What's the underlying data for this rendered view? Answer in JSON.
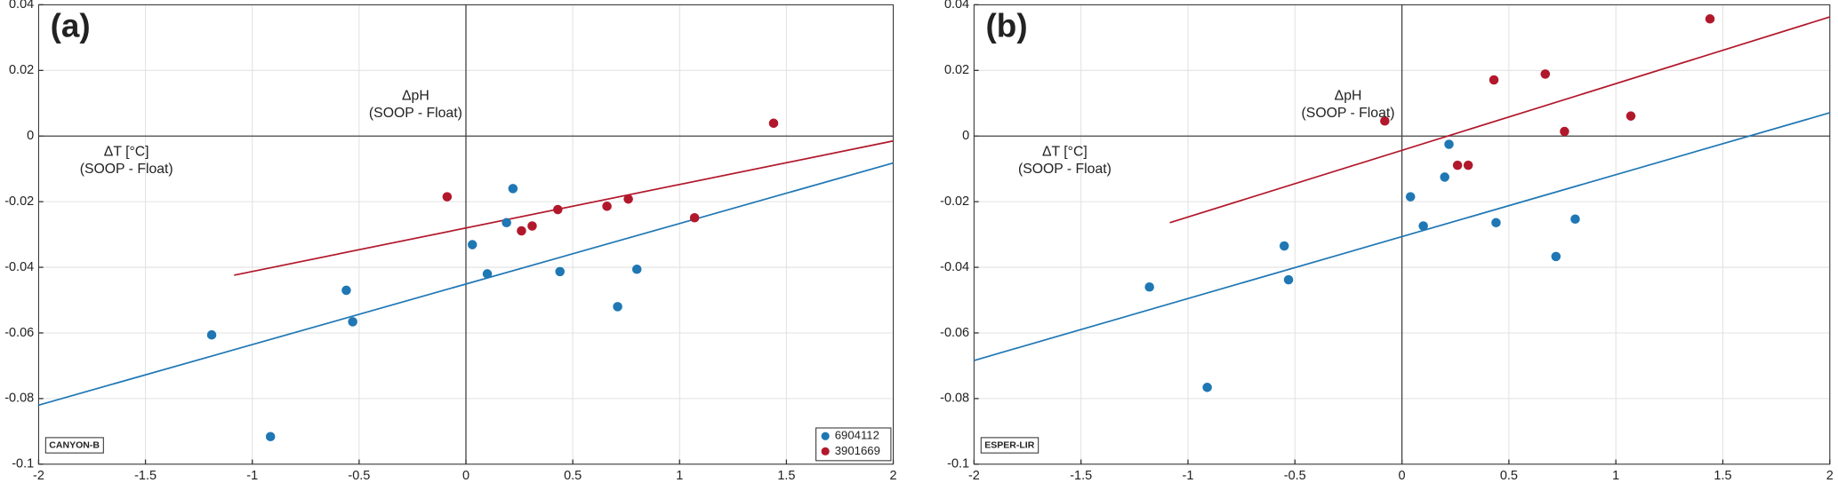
{
  "chart_data": [
    {
      "type": "scatter",
      "panel_label": "(a)",
      "method": "CANYON-B",
      "annotations": [
        "ΔpH",
        "(SOOP - Float)",
        "ΔT [°C]",
        "(SOOP - Float)"
      ],
      "xlim": [
        -2,
        2
      ],
      "ylim": [
        -0.1,
        0.04
      ],
      "xticks": [
        -2,
        -1.5,
        -1,
        -0.5,
        0,
        0.5,
        1,
        1.5,
        2
      ],
      "yticks": [
        -0.1,
        -0.08,
        -0.06,
        -0.04,
        -0.02,
        0,
        0.02,
        0.04
      ],
      "grid": true,
      "zero_lines": true,
      "legend": "lower right",
      "series": [
        {
          "name": "6904112",
          "color": "#1f77b4",
          "x": [
            -1.19,
            -0.915,
            -0.56,
            -0.53,
            0.03,
            0.1,
            0.19,
            0.22,
            0.44,
            0.71,
            0.8
          ],
          "y": [
            -0.0606,
            -0.0916,
            -0.047,
            -0.0566,
            -0.0331,
            -0.042,
            -0.0264,
            -0.016,
            -0.0413,
            -0.052,
            -0.0406
          ]
        },
        {
          "name": "3901669",
          "color": "#b2182b",
          "x": [
            -0.088,
            0.26,
            0.31,
            0.43,
            0.66,
            0.76,
            1.07,
            1.44
          ],
          "y": [
            -0.0185,
            -0.0289,
            -0.0274,
            -0.0224,
            -0.0214,
            -0.0192,
            -0.0249,
            0.0039
          ]
        }
      ],
      "fits": [
        {
          "color": "#1f77b4",
          "x": [
            -2,
            2
          ],
          "y": [
            -0.082,
            -0.0082
          ]
        },
        {
          "color": "#b2182b",
          "x": [
            -1.085,
            2
          ],
          "y": [
            -0.0424,
            -0.0015
          ]
        }
      ]
    },
    {
      "type": "scatter",
      "panel_label": "(b)",
      "method": "ESPER-LIR",
      "annotations": [
        "ΔpH",
        "(SOOP - Float)",
        "ΔT [°C]",
        "(SOOP - Float)"
      ],
      "xlim": [
        -2,
        2
      ],
      "ylim": [
        -0.1,
        0.04
      ],
      "xticks": [
        -2,
        -1.5,
        -1,
        -0.5,
        0,
        0.5,
        1,
        1.5,
        2
      ],
      "yticks": [
        -0.1,
        -0.08,
        -0.06,
        -0.04,
        -0.02,
        0,
        0.02,
        0.04
      ],
      "grid": true,
      "zero_lines": true,
      "series": [
        {
          "color": "#1f77b4",
          "x": [
            -1.18,
            -0.91,
            -0.55,
            -0.53,
            0.04,
            0.1,
            0.2,
            0.22,
            0.44,
            0.72,
            0.81
          ],
          "y": [
            -0.046,
            -0.0766,
            -0.0335,
            -0.0438,
            -0.0185,
            -0.0274,
            -0.0125,
            -0.0025,
            -0.0264,
            -0.0367,
            -0.0253
          ]
        },
        {
          "color": "#b2182b",
          "x": [
            -0.08,
            0.26,
            0.31,
            0.43,
            0.67,
            0.76,
            1.07,
            1.44
          ],
          "y": [
            0.0046,
            -0.0089,
            -0.0089,
            0.0171,
            0.0189,
            0.0014,
            0.0061,
            0.0357
          ]
        }
      ],
      "fits": [
        {
          "color": "#1f77b4",
          "x": [
            -2,
            2
          ],
          "y": [
            -0.0684,
            0.0071
          ]
        },
        {
          "color": "#b2182b",
          "x": [
            -1.085,
            2
          ],
          "y": [
            -0.0264,
            0.0363
          ]
        }
      ]
    }
  ]
}
